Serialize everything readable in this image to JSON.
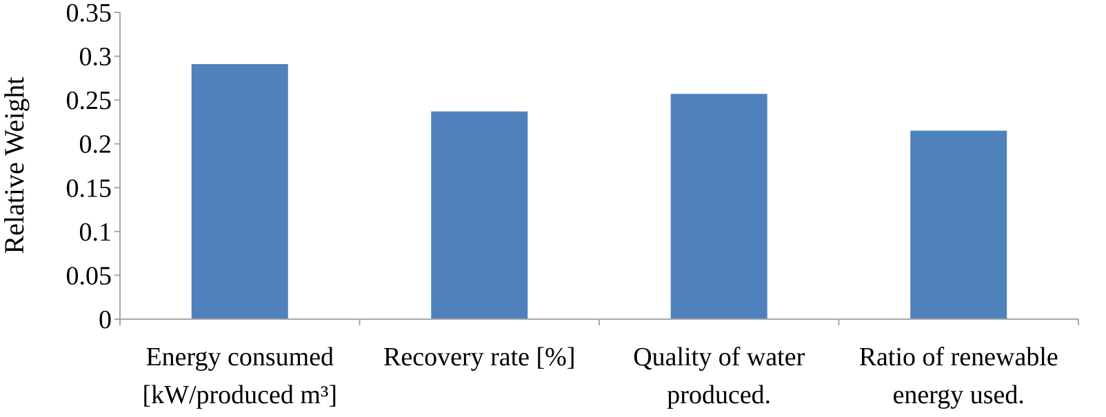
{
  "chart_data": {
    "type": "bar",
    "title": "",
    "xlabel": "",
    "ylabel": "Relative Weight",
    "ylim": [
      0,
      0.35
    ],
    "yticks": [
      "0",
      "0.05",
      "0.1",
      "0.15",
      "0.2",
      "0.25",
      "0.3",
      "0.35"
    ],
    "categories": [
      [
        "Energy consumed",
        "[kW/produced m³]"
      ],
      [
        "Recovery rate [%]"
      ],
      [
        "Quality of water",
        "produced."
      ],
      [
        "Ratio of renewable",
        "energy used."
      ]
    ],
    "values": [
      0.291,
      0.237,
      0.257,
      0.215
    ],
    "grid": false,
    "legend": "none",
    "colors": {
      "bar": "#4f81bd",
      "axis": "#a6a6a6"
    }
  }
}
